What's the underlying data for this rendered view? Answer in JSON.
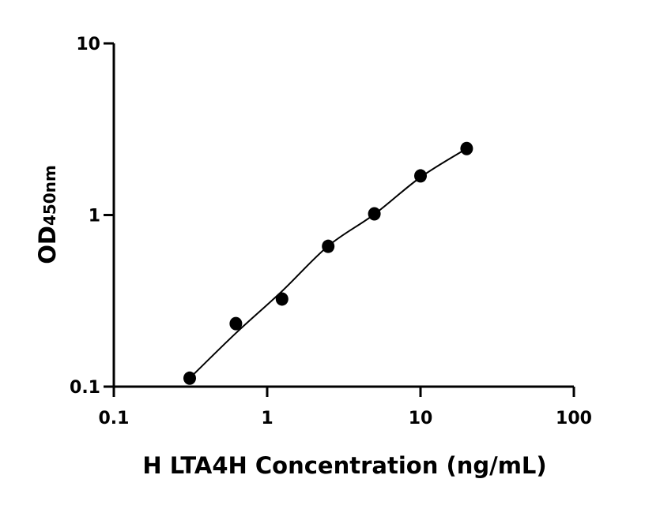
{
  "chart_data": {
    "type": "scatter",
    "title": "",
    "xlabel": "H LTA4H Concentration (ng/mL)",
    "ylabel_main": "OD",
    "ylabel_sub": "450nm",
    "xscale": "log",
    "yscale": "log",
    "xlim": [
      0.1,
      100
    ],
    "ylim": [
      0.1,
      10
    ],
    "xticks": [
      "0.1",
      "1",
      "10",
      "100"
    ],
    "yticks": [
      "0.1",
      "1",
      "10"
    ],
    "xtick_values": [
      0.1,
      1,
      10,
      100
    ],
    "ytick_values": [
      0.1,
      1,
      10
    ],
    "grid": false,
    "series": [
      {
        "x": [
          0.3125,
          0.625,
          1.25,
          2.5,
          5,
          10,
          20
        ],
        "y": [
          0.112,
          0.233,
          0.324,
          0.657,
          1.016,
          1.69,
          2.44
        ],
        "marker": "circle",
        "color": "#000000"
      }
    ],
    "fit_curve": {
      "x": [
        0.3125,
        0.625,
        1.25,
        2.5,
        5,
        10,
        20
      ],
      "y": [
        0.112,
        0.205,
        0.36,
        0.66,
        1.01,
        1.66,
        2.44
      ],
      "color": "#000000"
    }
  }
}
